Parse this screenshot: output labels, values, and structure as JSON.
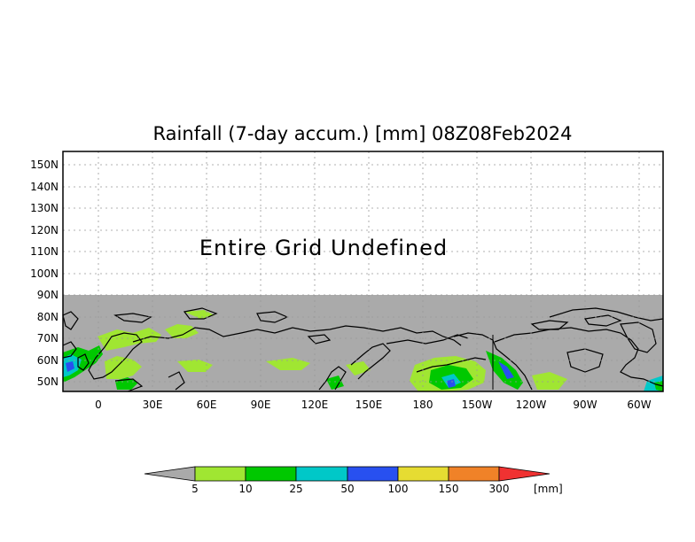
{
  "map": {
    "title": "Rainfall (7-day accum.) [mm] 08Z08Feb2024",
    "annotation": "Entire Grid Undefined",
    "lat_labels": [
      "150N",
      "140N",
      "130N",
      "120N",
      "110N",
      "100N",
      "90N",
      "80N",
      "70N",
      "60N",
      "50N"
    ],
    "lon_labels": [
      "0",
      "30E",
      "60E",
      "90E",
      "120E",
      "150E",
      "180",
      "150W",
      "120W",
      "90W",
      "60W"
    ],
    "undefined_color": "#aaaaaa",
    "coastline_color": "#000000"
  },
  "colorbar": {
    "thresholds": [
      "5",
      "10",
      "25",
      "50",
      "100",
      "150",
      "300"
    ],
    "unit": "[mm]",
    "colors": {
      "below": "#a9a9a9",
      "bins": [
        "#a0e632",
        "#00c800",
        "#00c8c8",
        "#2850f0",
        "#e6dc32",
        "#f08228"
      ],
      "above": "#f03232"
    }
  }
}
